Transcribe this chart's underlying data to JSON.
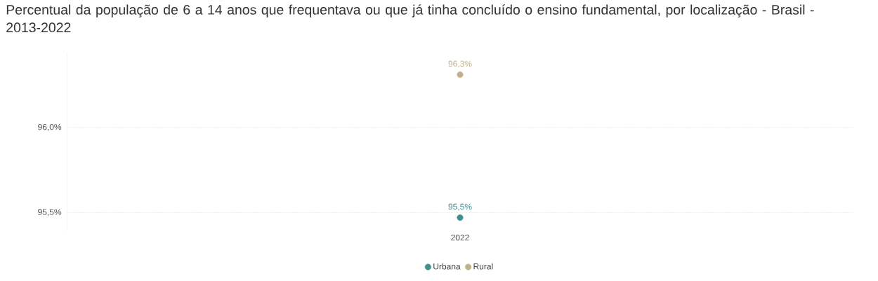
{
  "chart_data": {
    "type": "scatter",
    "title": "Percentual da população de 6 a 14 anos que frequentava ou que já tinha concluído o ensino fundamental, por localização - Brasil - 2013-2022",
    "categories": [
      "2022"
    ],
    "series": [
      {
        "name": "Urbana",
        "color": "#408e91",
        "values": [
          95.47
        ],
        "value_labels": [
          "95,5%"
        ]
      },
      {
        "name": "Rural",
        "color": "#bfb18d",
        "values": [
          96.31
        ],
        "value_labels": [
          "96,3%"
        ]
      }
    ],
    "ylim": [
      95.39,
      96.44
    ],
    "yticks": [
      {
        "value": 95.5,
        "label": "95,5%"
      },
      {
        "value": 96.0,
        "label": "96,0%"
      }
    ],
    "grid": "y",
    "legend": "bottom"
  }
}
